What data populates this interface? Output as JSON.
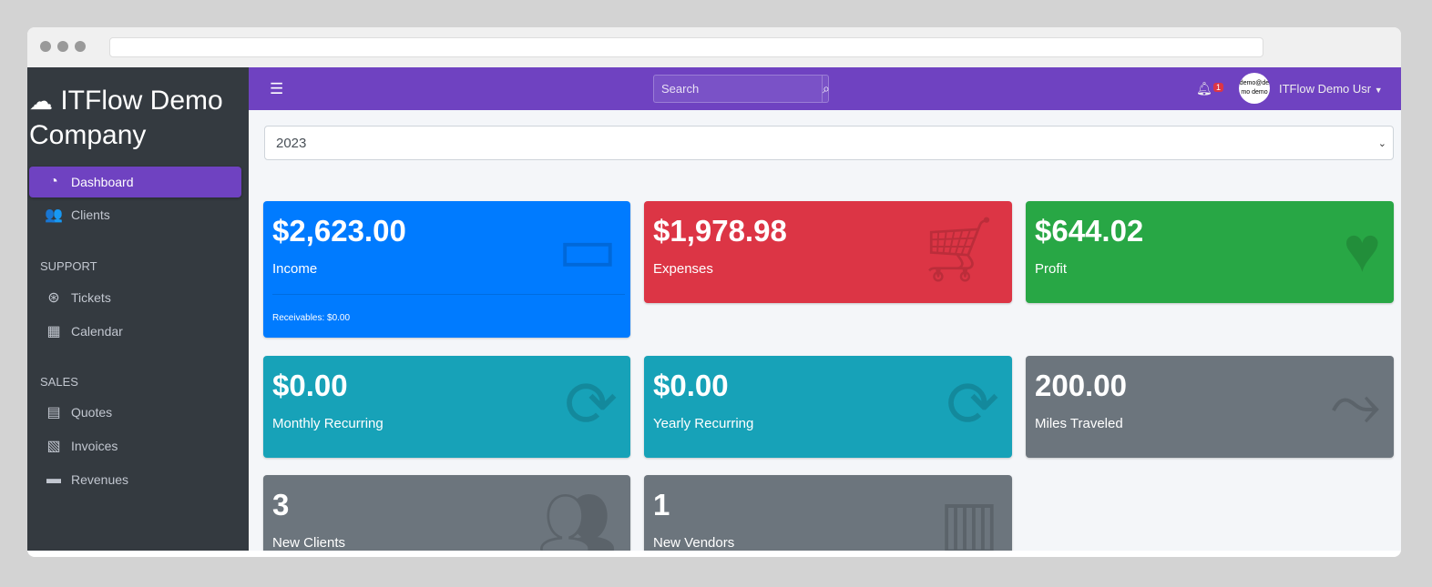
{
  "brand": "ITFlow Demo Company",
  "sidebar": {
    "items": [
      {
        "label": "Dashboard",
        "icon": "tachometer-icon",
        "active": true
      },
      {
        "label": "Clients",
        "icon": "users-icon"
      }
    ],
    "support_header": "SUPPORT",
    "support": [
      {
        "label": "Tickets",
        "icon": "life-ring-icon"
      },
      {
        "label": "Calendar",
        "icon": "calendar-icon"
      }
    ],
    "sales_header": "SALES",
    "sales": [
      {
        "label": "Quotes",
        "icon": "file-icon"
      },
      {
        "label": "Invoices",
        "icon": "invoice-icon"
      },
      {
        "label": "Revenues",
        "icon": "credit-card-icon"
      }
    ]
  },
  "topbar": {
    "search_placeholder": "Search",
    "notification_count": "1",
    "avatar_text": "demo@demo demo",
    "user_name": "ITFlow Demo Usr"
  },
  "year_select": {
    "value": "2023"
  },
  "cards": [
    {
      "value": "$2,623.00",
      "label": "Income",
      "footer": "Receivables: $0.00",
      "color": "#007bff",
      "icon": "credit-card-icon"
    },
    {
      "value": "$1,978.98",
      "label": "Expenses",
      "color": "#dc3545",
      "icon": "cart-icon"
    },
    {
      "value": "$644.02",
      "label": "Profit",
      "color": "#28a745",
      "icon": "heart-icon"
    },
    {
      "value": "$0.00",
      "label": "Monthly Recurring",
      "color": "#17a2b8",
      "icon": "sync-icon"
    },
    {
      "value": "$0.00",
      "label": "Yearly Recurring",
      "color": "#17a2b8",
      "icon": "sync-icon"
    },
    {
      "value": "200.00",
      "label": "Miles Traveled",
      "color": "#6c757d",
      "icon": "route-icon"
    },
    {
      "value": "3",
      "label": "New Clients",
      "color": "#6c757d",
      "icon": "users-icon"
    },
    {
      "value": "1",
      "label": "New Vendors",
      "color": "#6c757d",
      "icon": "building-icon"
    }
  ]
}
